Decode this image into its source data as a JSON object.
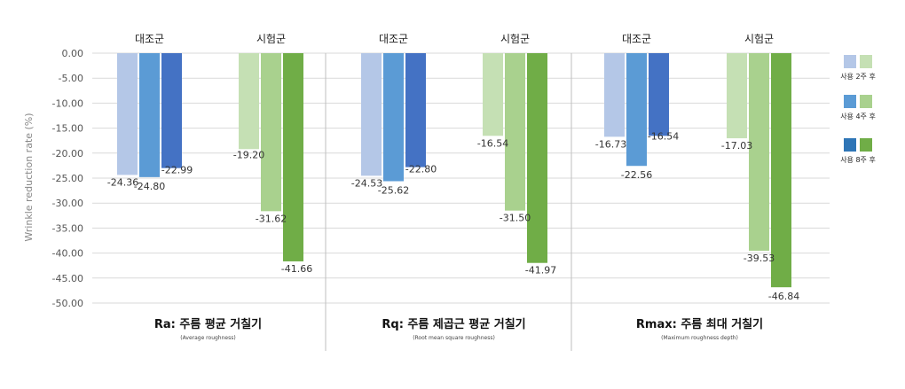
{
  "chart_data": {
    "type": "bar",
    "ylabel": "Wrinkle reduction rate (%)",
    "ylim": [
      -50,
      0
    ],
    "yticks": [
      "0.00",
      "-5.00",
      "-10.00",
      "-15.00",
      "-20.00",
      "-25.00",
      "-30.00",
      "-35.00",
      "-40.00",
      "-45.00",
      "-50.00"
    ],
    "grid": true,
    "legend_position": "right",
    "legend": [
      {
        "label": "사용 2주 후",
        "colors": [
          "#b4c7e7",
          "#c5e0b4"
        ]
      },
      {
        "label": "사용 4주 후",
        "colors": [
          "#5b9bd5",
          "#a9d18e"
        ]
      },
      {
        "label": "사용 8주 후",
        "colors": [
          "#2e75b6",
          "#70ad47"
        ]
      }
    ],
    "panels": [
      {
        "title": "Ra: 주름 평균 거칠기",
        "subtitle": "(Average roughness)",
        "groups": [
          {
            "name": "대조군",
            "values": [
              -24.36,
              -24.8,
              -22.99
            ],
            "labels": [
              "-24.36",
              "-24.80",
              "-22.99"
            ],
            "colors": [
              "#b4c7e7",
              "#5b9bd5",
              "#4472c4"
            ]
          },
          {
            "name": "시험군",
            "values": [
              -19.2,
              -31.62,
              -41.66
            ],
            "labels": [
              "-19.20",
              "-31.62",
              "-41.66"
            ],
            "colors": [
              "#c5e0b4",
              "#a9d18e",
              "#70ad47"
            ]
          }
        ]
      },
      {
        "title": "Rq: 주름 제곱근 평균 거칠기",
        "subtitle": "(Root mean square roughness)",
        "groups": [
          {
            "name": "대조군",
            "values": [
              -24.53,
              -25.62,
              -22.8
            ],
            "labels": [
              "-24.53",
              "-25.62",
              "-22.80"
            ],
            "colors": [
              "#b4c7e7",
              "#5b9bd5",
              "#4472c4"
            ]
          },
          {
            "name": "시험군",
            "values": [
              -16.54,
              -31.5,
              -41.97
            ],
            "labels": [
              "-16.54",
              "-31.50",
              "-41.97"
            ],
            "colors": [
              "#c5e0b4",
              "#a9d18e",
              "#70ad47"
            ]
          }
        ]
      },
      {
        "title": "Rmax: 주름 최대 거칠기",
        "subtitle": "(Maximum roughness depth)",
        "groups": [
          {
            "name": "대조군",
            "values": [
              -16.73,
              -22.56,
              -16.54
            ],
            "labels": [
              "-16.73",
              "-22.56",
              "-16.54"
            ],
            "colors": [
              "#b4c7e7",
              "#5b9bd5",
              "#4472c4"
            ]
          },
          {
            "name": "시험군",
            "values": [
              -17.03,
              -39.53,
              -46.84
            ],
            "labels": [
              "-17.03",
              "-39.53",
              "-46.84"
            ],
            "colors": [
              "#c5e0b4",
              "#a9d18e",
              "#70ad47"
            ]
          }
        ]
      }
    ]
  }
}
